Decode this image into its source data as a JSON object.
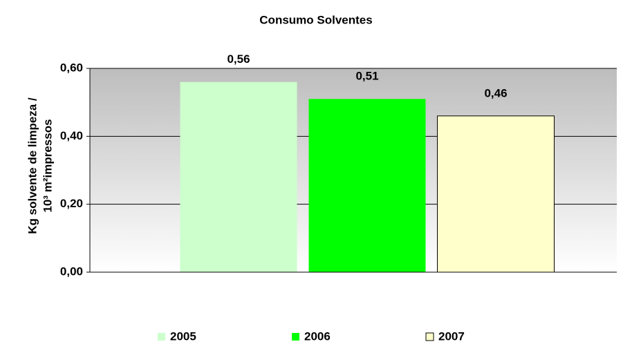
{
  "chart_data": {
    "type": "bar",
    "title": "Consumo Solventes",
    "ylabel": [
      "Kg solvente de limpeza /",
      "10³ m²impressos"
    ],
    "categories": [
      null
    ],
    "series": [
      {
        "name": "2005",
        "color": "#ccffcc",
        "values": [
          0.56
        ],
        "value_labels": [
          "0,56"
        ]
      },
      {
        "name": "2006",
        "color": "#00ff00",
        "values": [
          0.51
        ],
        "value_labels": [
          "0,51"
        ]
      },
      {
        "name": "2007",
        "color": "#ffffcc",
        "values": [
          0.46
        ],
        "value_labels": [
          "0,46"
        ]
      }
    ],
    "ylim": [
      0,
      0.6
    ],
    "yticks": [
      {
        "value": 0,
        "label": "0,00"
      },
      {
        "value": 0.2,
        "label": "0,20"
      },
      {
        "value": 0.4,
        "label": "0,40"
      },
      {
        "value": 0.6,
        "label": "0,60"
      }
    ],
    "grid": true,
    "legend": "bottom"
  }
}
